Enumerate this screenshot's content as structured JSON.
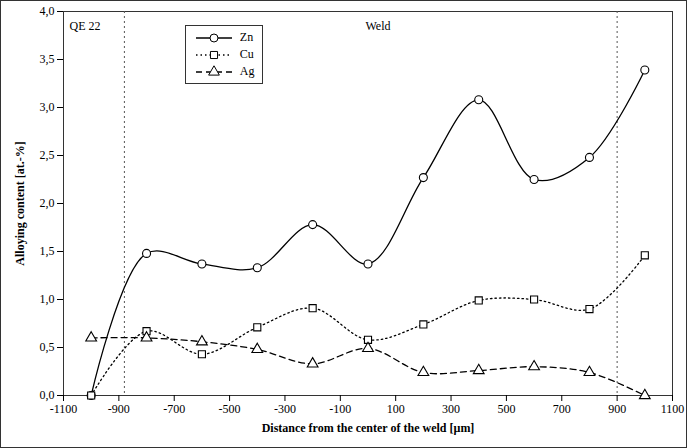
{
  "chart_data": {
    "type": "line",
    "x_label": "Distance from the center of the weld [µm]",
    "y_label": "Alloying content [at.-%]",
    "annotations": [
      "QE 22",
      "Weld"
    ],
    "vlines": [
      -880,
      900
    ],
    "x": [
      -1000,
      -800,
      -600,
      -400,
      -200,
      0,
      200,
      400,
      600,
      800,
      1000
    ],
    "series": [
      {
        "name": "Zn",
        "color": "#000000",
        "marker": "circle",
        "line_style": "solid",
        "values": [
          0,
          1.48,
          1.37,
          1.33,
          1.78,
          1.37,
          2.27,
          3.08,
          2.25,
          2.48,
          3.39
        ]
      },
      {
        "name": "Cu",
        "color": "#000000",
        "marker": "square",
        "line_style": "dotted",
        "values": [
          0,
          0.67,
          0.43,
          0.71,
          0.91,
          0.58,
          0.74,
          0.99,
          1.0,
          0.9,
          1.46
        ]
      },
      {
        "name": "Ag",
        "color": "#000000",
        "marker": "triangle",
        "line_style": "dashed",
        "values": [
          0.6,
          0.6,
          0.56,
          0.48,
          0.33,
          0.49,
          0.24,
          0.26,
          0.3,
          0.24,
          0.0
        ]
      }
    ],
    "xlim": [
      -1100,
      1100
    ],
    "xticks": [
      -1100,
      -900,
      -700,
      -500,
      -300,
      -100,
      100,
      300,
      500,
      700,
      900,
      1100
    ],
    "ylim": [
      0,
      4
    ],
    "yticks": [
      {
        "value": 0,
        "label": "0,0"
      },
      {
        "value": 0.5,
        "label": "0,5"
      },
      {
        "value": 1,
        "label": "1,0"
      },
      {
        "value": 1.5,
        "label": "1,5"
      },
      {
        "value": 2,
        "label": "2,0"
      },
      {
        "value": 2.5,
        "label": "2,5"
      },
      {
        "value": 3,
        "label": "3,0"
      },
      {
        "value": 3.5,
        "label": "3,5"
      },
      {
        "value": 4,
        "label": "4,0"
      }
    ],
    "grid": false,
    "legend": "top-left"
  }
}
